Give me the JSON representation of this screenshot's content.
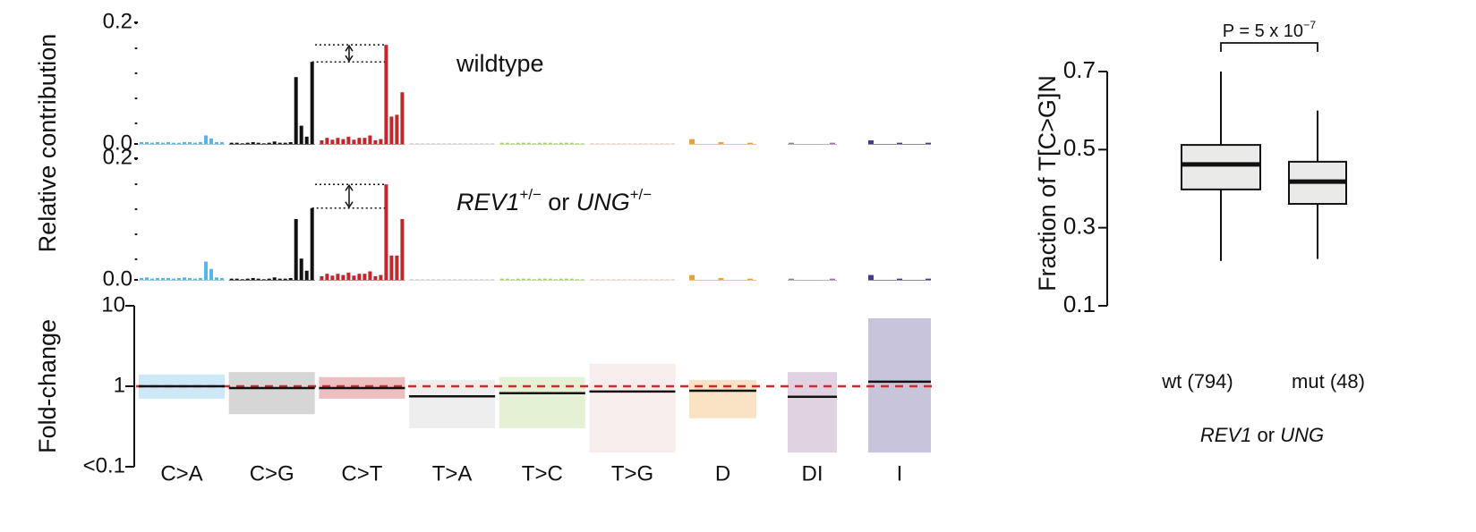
{
  "chart_data": [
    {
      "type": "bar",
      "ylabel": "Relative contribution",
      "label": [
        {
          "text": "wildtype"
        }
      ],
      "ylim": [
        0,
        0.2
      ],
      "yticks": [
        {
          "value": 0,
          "label": "0.0"
        },
        0.2
      ],
      "groups": [
        {
          "name": "C>A",
          "color": "#5ab4e4",
          "values": [
            0.003,
            0.003,
            0.002,
            0.003,
            0.002,
            0.003,
            0.002,
            0.002,
            0.003,
            0.003,
            0.002,
            0.003,
            0.014,
            0.009,
            0.003,
            0.003
          ]
        },
        {
          "name": "C>G",
          "color": "#111111",
          "values": [
            0.002,
            0.002,
            0.001,
            0.002,
            0.003,
            0.002,
            0.001,
            0.002,
            0.004,
            0.002,
            0.002,
            0.003,
            0.11,
            0.03,
            0.012,
            0.135
          ]
        },
        {
          "name": "C>T",
          "color": "#c0282d",
          "values": [
            0.006,
            0.01,
            0.007,
            0.01,
            0.008,
            0.012,
            0.007,
            0.01,
            0.01,
            0.014,
            0.006,
            0.008,
            0.163,
            0.045,
            0.048,
            0.085
          ]
        },
        {
          "name": "T>A",
          "color": "#c8c8c8",
          "values": [
            0.001,
            0.001,
            0.001,
            0.001,
            0.001,
            0.001,
            0.001,
            0.001,
            0.001,
            0.001,
            0.001,
            0.001,
            0.001,
            0.001,
            0.001,
            0.001
          ]
        },
        {
          "name": "T>C",
          "color": "#a6cf73",
          "values": [
            0.002,
            0.002,
            0.001,
            0.002,
            0.002,
            0.002,
            0.001,
            0.002,
            0.002,
            0.002,
            0.001,
            0.002,
            0.002,
            0.002,
            0.001,
            0.001
          ]
        },
        {
          "name": "T>G",
          "color": "#e8c4c4",
          "values": [
            0.001,
            0.001,
            0.001,
            0.001,
            0.001,
            0.001,
            0.001,
            0.001,
            0.001,
            0.001,
            0.001,
            0.001,
            0.001,
            0.001,
            0.001,
            0.001
          ]
        },
        {
          "name": "D",
          "color": "#e8a23a",
          "values": [
            0.008,
            0.003,
            0.002
          ]
        },
        {
          "name": "DI",
          "color": "#9a7a9a",
          "values": [
            0.002,
            0.002
          ]
        },
        {
          "name": "I",
          "color": "#4a3a8a",
          "values": [
            0.006,
            0.002,
            0.002
          ]
        }
      ]
    },
    {
      "type": "bar",
      "label": [
        {
          "text": "REV1",
          "italic": true
        },
        {
          "text": "+/−",
          "sup": true
        },
        {
          "text": " or "
        },
        {
          "text": "UNG",
          "italic": true
        },
        {
          "text": "+/−",
          "sup": true
        }
      ],
      "ylim": [
        0,
        0.2
      ],
      "yticks": [
        {
          "value": 0,
          "label": "0.0"
        },
        0.2
      ],
      "groups": [
        {
          "name": "C>A",
          "color": "#5ab4e4",
          "values": [
            0.003,
            0.004,
            0.002,
            0.003,
            0.003,
            0.003,
            0.002,
            0.003,
            0.004,
            0.003,
            0.002,
            0.003,
            0.03,
            0.018,
            0.004,
            0.003
          ]
        },
        {
          "name": "C>G",
          "color": "#111111",
          "values": [
            0.002,
            0.002,
            0.001,
            0.002,
            0.003,
            0.002,
            0.001,
            0.002,
            0.004,
            0.002,
            0.002,
            0.003,
            0.1,
            0.035,
            0.015,
            0.118
          ]
        },
        {
          "name": "C>T",
          "color": "#c0282d",
          "values": [
            0.006,
            0.01,
            0.007,
            0.01,
            0.008,
            0.012,
            0.007,
            0.01,
            0.01,
            0.014,
            0.006,
            0.008,
            0.157,
            0.04,
            0.04,
            0.1
          ]
        },
        {
          "name": "T>A",
          "color": "#c8c8c8",
          "values": [
            0.001,
            0.001,
            0.001,
            0.001,
            0.001,
            0.001,
            0.001,
            0.001,
            0.001,
            0.001,
            0.001,
            0.001,
            0.001,
            0.001,
            0.001,
            0.001
          ]
        },
        {
          "name": "T>C",
          "color": "#a6cf73",
          "values": [
            0.002,
            0.002,
            0.001,
            0.002,
            0.002,
            0.002,
            0.001,
            0.002,
            0.002,
            0.002,
            0.001,
            0.002,
            0.002,
            0.002,
            0.001,
            0.001
          ]
        },
        {
          "name": "T>G",
          "color": "#e8c4c4",
          "values": [
            0.001,
            0.001,
            0.001,
            0.001,
            0.001,
            0.001,
            0.001,
            0.001,
            0.001,
            0.001,
            0.001,
            0.001,
            0.001,
            0.001,
            0.001,
            0.001
          ]
        },
        {
          "name": "D",
          "color": "#e8a23a",
          "values": [
            0.008,
            0.003,
            0.002
          ]
        },
        {
          "name": "DI",
          "color": "#9a7a9a",
          "values": [
            0.002,
            0.002
          ]
        },
        {
          "name": "I",
          "color": "#4a3a8a",
          "values": [
            0.008,
            0.002,
            0.002
          ]
        }
      ]
    },
    {
      "type": "range",
      "ylabel": "Fold-change",
      "log": true,
      "ylim": [
        0.1,
        10
      ],
      "yticks": [
        10,
        1,
        {
          "value": 0.1,
          "label": "<0.1"
        }
      ],
      "reference": 1,
      "reference_color": "#d62728",
      "categories": [
        "C>A",
        "C>G",
        "C>T",
        "T>A",
        "T>C",
        "T>G",
        "D",
        "DI",
        "I"
      ],
      "colors": [
        "#5ab4e4",
        "#777777",
        "#c0282d",
        "#c8c8c8",
        "#a6cf73",
        "#e8c4c4",
        "#e8a23a",
        "#9a6a9a",
        "#4a3a8a"
      ],
      "values": [
        1.0,
        0.95,
        0.95,
        0.75,
        0.82,
        0.86,
        0.88,
        0.74,
        1.14
      ],
      "ranges": [
        [
          0.7,
          1.4
        ],
        [
          0.45,
          1.5
        ],
        [
          0.7,
          1.3
        ],
        [
          0.3,
          1.2
        ],
        [
          0.3,
          1.3
        ],
        [
          0.15,
          1.9
        ],
        [
          0.4,
          1.2
        ],
        [
          0.15,
          1.5
        ],
        [
          0.15,
          7
        ]
      ]
    },
    {
      "type": "box",
      "ylabel": "Fraction of T[C>G]N",
      "ylim": [
        0.1,
        0.7
      ],
      "yticks": [
        0.1,
        0.3,
        0.5,
        0.7
      ],
      "categories": [
        "wt (794)",
        "mut (48)"
      ],
      "color": "#d6d6d2",
      "min": [
        0.215,
        0.22
      ],
      "q1": [
        0.398,
        0.361
      ],
      "median": [
        0.462,
        0.418
      ],
      "q3": [
        0.512,
        0.469
      ],
      "max": [
        0.7,
        0.6
      ],
      "annotation": [
        {
          "text": "P = 5 x 10"
        },
        {
          "text": "−7",
          "sup": true
        }
      ],
      "xlabel": [
        {
          "text": "REV1",
          "italic": true
        },
        {
          "text": " or "
        },
        {
          "text": "UNG",
          "italic": true
        }
      ]
    }
  ]
}
